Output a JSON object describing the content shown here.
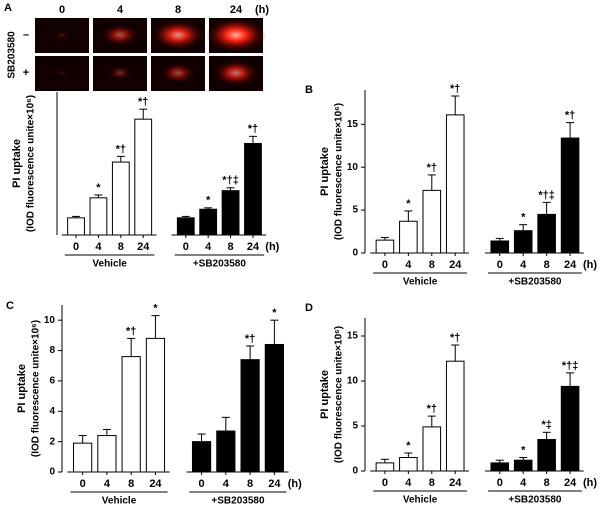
{
  "image_panel": {
    "col_labels": [
      "0",
      "4",
      "8",
      "24"
    ],
    "unit": "(h)",
    "row_title": "SB203580",
    "row_labels": [
      "–",
      "+"
    ]
  },
  "chart_data": [
    {
      "type": "bar",
      "panel_label": "A",
      "y_label": "PI uptake",
      "y_sublabel": "(IOD fluorescence unite×10⁶)",
      "categories": [
        "0",
        "4",
        "8",
        "24"
      ],
      "x_unit": "(h)",
      "series": [
        {
          "name": "Vehicle",
          "color": "#ffffff",
          "values": [
            1.2,
            2.6,
            5.1,
            8.1
          ],
          "errors": [
            0.1,
            0.2,
            0.4,
            0.7
          ],
          "labels": [
            null,
            "*",
            "*†",
            "*†"
          ]
        },
        {
          "name": "+SB203580",
          "color": "#000000",
          "values": [
            1.2,
            1.8,
            3.1,
            6.4
          ],
          "errors": [
            0.1,
            0.1,
            0.2,
            0.5
          ],
          "labels": [
            null,
            "*",
            "*†‡",
            "*†"
          ]
        }
      ],
      "ylim": [
        0,
        10
      ]
    },
    {
      "type": "bar",
      "panel_label": "B",
      "y_label": "PI uptake",
      "y_sublabel": "(IOD fluorescence unite×10⁶)",
      "categories": [
        "0",
        "4",
        "8",
        "24"
      ],
      "x_unit": "(h)",
      "series": [
        {
          "name": "Vehicle",
          "color": "#ffffff",
          "values": [
            1.5,
            3.7,
            7.3,
            16.1
          ],
          "errors": [
            0.3,
            1.2,
            1.8,
            2.2
          ],
          "labels": [
            null,
            "*",
            "*†",
            "*†"
          ]
        },
        {
          "name": "+SB203580",
          "color": "#000000",
          "values": [
            1.4,
            2.6,
            4.5,
            13.4
          ],
          "errors": [
            0.3,
            0.7,
            1.4,
            1.8
          ],
          "labels": [
            null,
            "*",
            "*†‡",
            "*†"
          ]
        }
      ],
      "ylim": [
        0,
        19
      ],
      "yticks": [
        0,
        5,
        10,
        15
      ]
    },
    {
      "type": "bar",
      "panel_label": "C",
      "y_label": "PI uptake",
      "y_sublabel": "(IOD fluorescence unite×10⁶)",
      "categories": [
        "0",
        "4",
        "8",
        "24"
      ],
      "x_unit": "(h)",
      "series": [
        {
          "name": "Vehicle",
          "color": "#ffffff",
          "values": [
            1.9,
            2.4,
            7.6,
            8.8
          ],
          "errors": [
            0.5,
            0.4,
            1.2,
            1.5
          ],
          "labels": [
            null,
            null,
            "*†",
            "*"
          ]
        },
        {
          "name": "+SB203580",
          "color": "#000000",
          "values": [
            2.0,
            2.7,
            7.4,
            8.4
          ],
          "errors": [
            0.5,
            0.9,
            0.9,
            1.6
          ],
          "labels": [
            null,
            null,
            "*†",
            "*"
          ]
        }
      ],
      "ylim": [
        0,
        11
      ],
      "yticks": [
        0,
        2,
        4,
        6,
        8,
        10
      ]
    },
    {
      "type": "bar",
      "panel_label": "D",
      "y_label": "PI uptake",
      "y_sublabel": "(IOD fluorescence unite×10⁶)",
      "categories": [
        "0",
        "4",
        "8",
        "24"
      ],
      "x_unit": "(h)",
      "series": [
        {
          "name": "Vehicle",
          "color": "#ffffff",
          "values": [
            0.9,
            1.5,
            4.9,
            12.2
          ],
          "errors": [
            0.4,
            0.5,
            1.2,
            1.8
          ],
          "labels": [
            null,
            "*",
            "*†",
            "*†"
          ]
        },
        {
          "name": "+SB203580",
          "color": "#000000",
          "values": [
            0.9,
            1.2,
            3.5,
            9.4
          ],
          "errors": [
            0.3,
            0.3,
            0.8,
            1.5
          ],
          "labels": [
            null,
            "*",
            "*‡",
            "*†‡"
          ]
        }
      ],
      "ylim": [
        0,
        17
      ],
      "yticks": [
        0,
        5,
        10,
        15
      ]
    }
  ]
}
